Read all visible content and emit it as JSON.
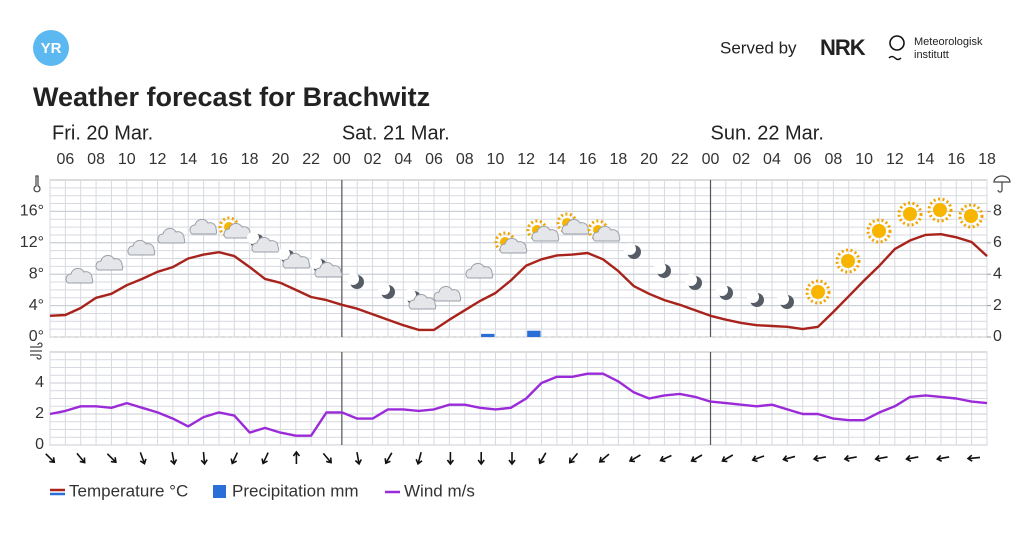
{
  "header": {
    "logo": "YR",
    "served_by": "Served by",
    "partner": "NRK",
    "institute": [
      "Meteorologisk",
      "institutt"
    ]
  },
  "title": "Weather forecast for Brachwitz",
  "chart_data": [
    {
      "type": "line",
      "days": [
        "Fri. 20 Mar.",
        "Sat. 21 Mar.",
        "Sun. 22 Mar."
      ],
      "categories": [
        null,
        "06",
        null,
        "08",
        null,
        "10",
        null,
        "12",
        null,
        "14",
        null,
        "16",
        null,
        "18",
        null,
        "20",
        null,
        "22",
        null,
        "00",
        null,
        "02",
        null,
        "04",
        null,
        "06",
        null,
        "08",
        null,
        "10",
        null,
        "12",
        null,
        "14",
        null,
        "16",
        null,
        "18",
        null,
        "20",
        null,
        "22",
        null,
        "00",
        null,
        "02",
        null,
        "04",
        null,
        "06",
        null,
        "08",
        null,
        "10",
        null,
        "12",
        null,
        "14",
        null,
        "16",
        null,
        "18"
      ],
      "ylim": [
        0,
        20
      ],
      "yticks": [
        {
          "value": 0,
          "label": "0°"
        },
        {
          "value": 4,
          "label": "4°"
        },
        {
          "value": 8,
          "label": "8°"
        },
        {
          "value": 12,
          "label": "12°"
        },
        {
          "value": 16,
          "label": "16°"
        }
      ],
      "y2lim": [
        0,
        10
      ],
      "y2ticks": [
        0,
        2,
        4,
        6,
        8
      ],
      "series": [
        {
          "name": "Temperature °C",
          "type": "line",
          "color": "#a8231c",
          "values": [
            2.7,
            2.8,
            3.7,
            5.0,
            5.5,
            6.6,
            7.4,
            8.3,
            8.9,
            10.0,
            10.5,
            10.8,
            10.3,
            8.9,
            7.4,
            6.9,
            6.0,
            5.1,
            4.7,
            4.1,
            3.6,
            2.9,
            2.2,
            1.5,
            0.9,
            0.9,
            2.2,
            3.4,
            4.6,
            5.6,
            7.2,
            9.1,
            9.9,
            10.4,
            10.5,
            10.7,
            9.9,
            8.4,
            6.5,
            5.5,
            4.7,
            4.1,
            3.4,
            2.7,
            2.2,
            1.8,
            1.5,
            1.4,
            1.3,
            1.0,
            1.3,
            3.2,
            5.2,
            7.2,
            9.1,
            11.2,
            12.3,
            13.0,
            13.1,
            12.7,
            12.1,
            10.3
          ]
        },
        {
          "name": "Precipitation mm",
          "type": "bar",
          "axis": "y2",
          "color": "#2a6ed8",
          "values": [
            0,
            0,
            0,
            0,
            0,
            0,
            0,
            0,
            0,
            0,
            0,
            0,
            0,
            0,
            0,
            0,
            0,
            0,
            0,
            0,
            0,
            0,
            0,
            0,
            0,
            0,
            0,
            0,
            0.2,
            0,
            0,
            0.4,
            0,
            0,
            0,
            0,
            0,
            0,
            0,
            0,
            0,
            0,
            0,
            0,
            0,
            0,
            0,
            0,
            0,
            0,
            0,
            0,
            0,
            0,
            0,
            0,
            0,
            0,
            0,
            0,
            0,
            0
          ]
        }
      ]
    },
    {
      "type": "line",
      "ylim": [
        0,
        6
      ],
      "yticks": [
        0,
        2,
        4
      ],
      "series": [
        {
          "name": "Wind m/s",
          "color": "#9b2bd8",
          "values": [
            2.0,
            2.2,
            2.5,
            2.5,
            2.4,
            2.7,
            2.4,
            2.1,
            1.7,
            1.2,
            1.8,
            2.1,
            1.9,
            0.8,
            1.1,
            0.8,
            0.6,
            0.6,
            2.1,
            2.1,
            1.7,
            1.7,
            2.3,
            2.3,
            2.2,
            2.3,
            2.6,
            2.6,
            2.4,
            2.3,
            2.4,
            3.0,
            4.0,
            4.4,
            4.4,
            4.6,
            4.6,
            4.1,
            3.4,
            3.0,
            3.2,
            3.3,
            3.1,
            2.8,
            2.7,
            2.6,
            2.5,
            2.6,
            2.3,
            2.0,
            2.0,
            1.7,
            1.6,
            1.6,
            2.1,
            2.5,
            3.1,
            3.2,
            3.1,
            3.0,
            2.8,
            2.7
          ]
        }
      ]
    }
  ]
}
